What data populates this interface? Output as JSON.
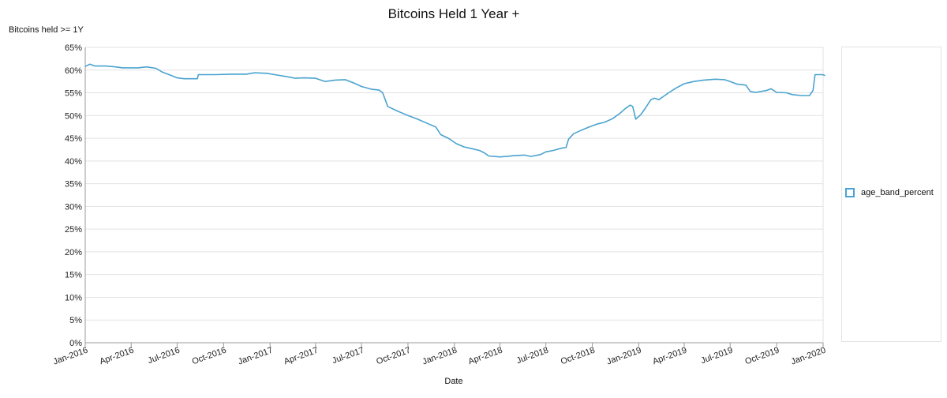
{
  "chart_data": {
    "type": "line",
    "title": "Bitcoins Held 1 Year +",
    "ylabel": "Bitcoins held >= 1Y",
    "xlabel": "Date",
    "ylim": [
      0,
      65
    ],
    "y_ticks": [
      0,
      5,
      10,
      15,
      20,
      25,
      30,
      35,
      40,
      45,
      50,
      55,
      60,
      65
    ],
    "y_tick_suffix": "%",
    "x_tick_labels": [
      "Jan-2016",
      "Apr-2016",
      "Jul-2016",
      "Oct-2016",
      "Jan-2017",
      "Apr-2017",
      "Jul-2017",
      "Oct-2017",
      "Jan-2018",
      "Apr-2018",
      "Jul-2018",
      "Oct-2018",
      "Jan-2019",
      "Apr-2019",
      "Jul-2019",
      "Oct-2019",
      "Jan-2020"
    ],
    "grid": true,
    "legend_position": "right",
    "series": [
      {
        "name": "age_band_percent",
        "color": "#4aa3cf",
        "points": [
          [
            "2016-01-01",
            60.8
          ],
          [
            "2016-01-10",
            61.3
          ],
          [
            "2016-01-20",
            60.9
          ],
          [
            "2016-02-10",
            60.9
          ],
          [
            "2016-03-01",
            60.7
          ],
          [
            "2016-03-15",
            60.5
          ],
          [
            "2016-04-15",
            60.5
          ],
          [
            "2016-05-01",
            60.7
          ],
          [
            "2016-05-20",
            60.4
          ],
          [
            "2016-06-01",
            59.6
          ],
          [
            "2016-06-20",
            58.8
          ],
          [
            "2016-07-01",
            58.3
          ],
          [
            "2016-07-15",
            58.1
          ],
          [
            "2016-08-10",
            58.1
          ],
          [
            "2016-08-12",
            59.0
          ],
          [
            "2016-09-15",
            59.0
          ],
          [
            "2016-10-15",
            59.1
          ],
          [
            "2016-11-15",
            59.1
          ],
          [
            "2016-12-01",
            59.4
          ],
          [
            "2016-12-25",
            59.3
          ],
          [
            "2017-01-10",
            59.0
          ],
          [
            "2017-02-01",
            58.6
          ],
          [
            "2017-02-20",
            58.2
          ],
          [
            "2017-03-10",
            58.3
          ],
          [
            "2017-04-01",
            58.2
          ],
          [
            "2017-04-20",
            57.5
          ],
          [
            "2017-05-10",
            57.8
          ],
          [
            "2017-05-30",
            57.9
          ],
          [
            "2017-06-15",
            57.2
          ],
          [
            "2017-07-01",
            56.4
          ],
          [
            "2017-07-20",
            55.8
          ],
          [
            "2017-08-05",
            55.6
          ],
          [
            "2017-08-12",
            55.0
          ],
          [
            "2017-08-22",
            52.0
          ],
          [
            "2017-09-10",
            51.0
          ],
          [
            "2017-10-01",
            50.0
          ],
          [
            "2017-10-20",
            49.2
          ],
          [
            "2017-11-10",
            48.2
          ],
          [
            "2017-11-25",
            47.5
          ],
          [
            "2017-12-05",
            45.8
          ],
          [
            "2017-12-20",
            45.0
          ],
          [
            "2018-01-05",
            43.8
          ],
          [
            "2018-01-20",
            43.1
          ],
          [
            "2018-02-05",
            42.7
          ],
          [
            "2018-02-20",
            42.3
          ],
          [
            "2018-03-01",
            41.8
          ],
          [
            "2018-03-10",
            41.1
          ],
          [
            "2018-04-01",
            40.9
          ],
          [
            "2018-04-15",
            41.0
          ],
          [
            "2018-05-01",
            41.2
          ],
          [
            "2018-05-20",
            41.3
          ],
          [
            "2018-06-01",
            41.0
          ],
          [
            "2018-06-20",
            41.4
          ],
          [
            "2018-07-01",
            42.0
          ],
          [
            "2018-07-15",
            42.3
          ],
          [
            "2018-08-01",
            42.8
          ],
          [
            "2018-08-10",
            43.0
          ],
          [
            "2018-08-15",
            44.8
          ],
          [
            "2018-08-25",
            46.0
          ],
          [
            "2018-09-10",
            46.8
          ],
          [
            "2018-09-25",
            47.5
          ],
          [
            "2018-10-10",
            48.1
          ],
          [
            "2018-10-25",
            48.5
          ],
          [
            "2018-11-10",
            49.3
          ],
          [
            "2018-11-25",
            50.5
          ],
          [
            "2018-12-05",
            51.5
          ],
          [
            "2018-12-15",
            52.3
          ],
          [
            "2018-12-20",
            52.0
          ],
          [
            "2018-12-26",
            49.2
          ],
          [
            "2019-01-05",
            50.2
          ],
          [
            "2019-01-15",
            51.8
          ],
          [
            "2019-01-25",
            53.5
          ],
          [
            "2019-02-01",
            53.8
          ],
          [
            "2019-02-10",
            53.5
          ],
          [
            "2019-02-20",
            54.3
          ],
          [
            "2019-03-01",
            55.0
          ],
          [
            "2019-03-15",
            56.0
          ],
          [
            "2019-04-01",
            57.0
          ],
          [
            "2019-04-20",
            57.5
          ],
          [
            "2019-05-10",
            57.8
          ],
          [
            "2019-06-01",
            58.0
          ],
          [
            "2019-06-20",
            57.9
          ],
          [
            "2019-07-01",
            57.5
          ],
          [
            "2019-07-15",
            56.9
          ],
          [
            "2019-08-01",
            56.7
          ],
          [
            "2019-08-10",
            55.3
          ],
          [
            "2019-08-20",
            55.1
          ],
          [
            "2019-09-10",
            55.5
          ],
          [
            "2019-09-20",
            55.9
          ],
          [
            "2019-10-01",
            55.1
          ],
          [
            "2019-10-20",
            55.0
          ],
          [
            "2019-11-01",
            54.6
          ],
          [
            "2019-11-20",
            54.4
          ],
          [
            "2019-12-05",
            54.4
          ],
          [
            "2019-12-12",
            55.5
          ],
          [
            "2019-12-16",
            59.0
          ],
          [
            "2019-12-31",
            59.0
          ],
          [
            "2020-01-05",
            58.8
          ]
        ]
      }
    ]
  }
}
